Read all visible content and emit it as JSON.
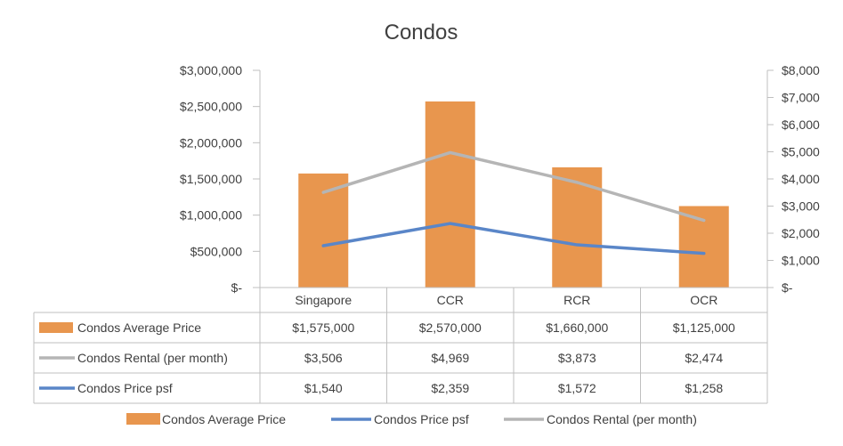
{
  "chart_data": {
    "type": "bar",
    "title": "Condos",
    "categories": [
      "Singapore",
      "CCR",
      "RCR",
      "OCR"
    ],
    "series": [
      {
        "name": "Condos Average Price",
        "kind": "bar",
        "axis": "left",
        "color": "#E8964E",
        "values": [
          1575000,
          2570000,
          1660000,
          1125000
        ],
        "labels": [
          "$1,575,000",
          "$2,570,000",
          "$1,660,000",
          "$1,125,000"
        ]
      },
      {
        "name": "Condos Rental (per month)",
        "kind": "line",
        "axis": "right",
        "color": "#B5B5B5",
        "values": [
          3506,
          4969,
          3873,
          2474
        ],
        "labels": [
          "$3,506",
          "$4,969",
          "$3,873",
          "$2,474"
        ]
      },
      {
        "name": "Condos Price psf",
        "kind": "line",
        "axis": "right",
        "color": "#5A86C8",
        "values": [
          1540,
          2359,
          1572,
          1258
        ],
        "labels": [
          "$1,540",
          "$2,359",
          "$1,572",
          "$1,258"
        ]
      }
    ],
    "y_left": {
      "range": [
        0,
        3000000
      ],
      "ticks": [
        0,
        500000,
        1000000,
        1500000,
        2000000,
        2500000,
        3000000
      ],
      "tick_labels": [
        "$-",
        "$500,000",
        "$1,000,000",
        "$1,500,000",
        "$2,000,000",
        "$2,500,000",
        "$3,000,000"
      ]
    },
    "y_right": {
      "range": [
        0,
        8000
      ],
      "ticks": [
        0,
        1000,
        2000,
        3000,
        4000,
        5000,
        6000,
        7000,
        8000
      ],
      "tick_labels": [
        "$-",
        "$1,000",
        "$2,000",
        "$3,000",
        "$4,000",
        "$5,000",
        "$6,000",
        "$7,000",
        "$8,000"
      ]
    },
    "legend": {
      "position": "bottom",
      "items": [
        "Condos Average Price",
        "Condos Price psf",
        "Condos Rental (per month)"
      ]
    },
    "data_table": {
      "rows": [
        "Condos Average Price",
        "Condos Rental (per month)",
        "Condos Price psf"
      ]
    },
    "grid": false
  }
}
